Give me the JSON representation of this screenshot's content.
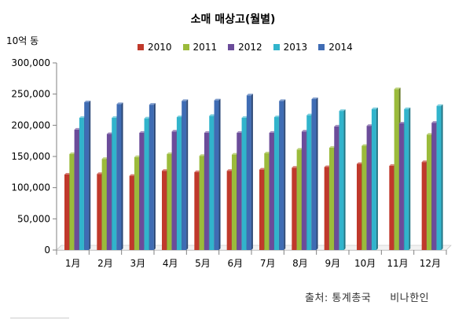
{
  "chart_data": {
    "type": "bar",
    "title": "소매 매상고(월별)",
    "unit_label": "10억 동",
    "categories": [
      "1月",
      "2月",
      "3月",
      "4月",
      "5月",
      "6月",
      "7月",
      "8月",
      "9月",
      "10月",
      "11月",
      "12月"
    ],
    "y_ticks": [
      "0",
      "50,000",
      "100,000",
      "150,000",
      "200,000",
      "250,000",
      "300,000"
    ],
    "ylim": [
      0,
      300000
    ],
    "grid": false,
    "legend_position": "top",
    "series": [
      {
        "name": "2010",
        "color": "#c0392b",
        "values": [
          121000,
          122000,
          119000,
          127000,
          125000,
          127000,
          129000,
          132000,
          133000,
          138000,
          135000,
          141000
        ]
      },
      {
        "name": "2011",
        "color": "#9bbb3b",
        "values": [
          154000,
          146000,
          149000,
          154000,
          151000,
          153000,
          155000,
          161000,
          164000,
          167000,
          258000,
          185000
        ]
      },
      {
        "name": "2012",
        "color": "#6b4c9a",
        "values": [
          193000,
          186000,
          188000,
          190000,
          188000,
          188000,
          188000,
          190000,
          198000,
          199000,
          203000,
          204000
        ]
      },
      {
        "name": "2013",
        "color": "#31b4cc",
        "values": [
          212000,
          212000,
          211000,
          213000,
          215000,
          212000,
          213000,
          216000,
          223000,
          226000,
          226000,
          231000
        ]
      },
      {
        "name": "2014",
        "color": "#3f6cb4",
        "values": [
          237000,
          234000,
          233000,
          239000,
          240000,
          248000,
          239000,
          242000,
          null,
          null,
          null,
          null
        ]
      }
    ]
  },
  "source_label": "출처: 통계총국",
  "source_author": "비나한인"
}
